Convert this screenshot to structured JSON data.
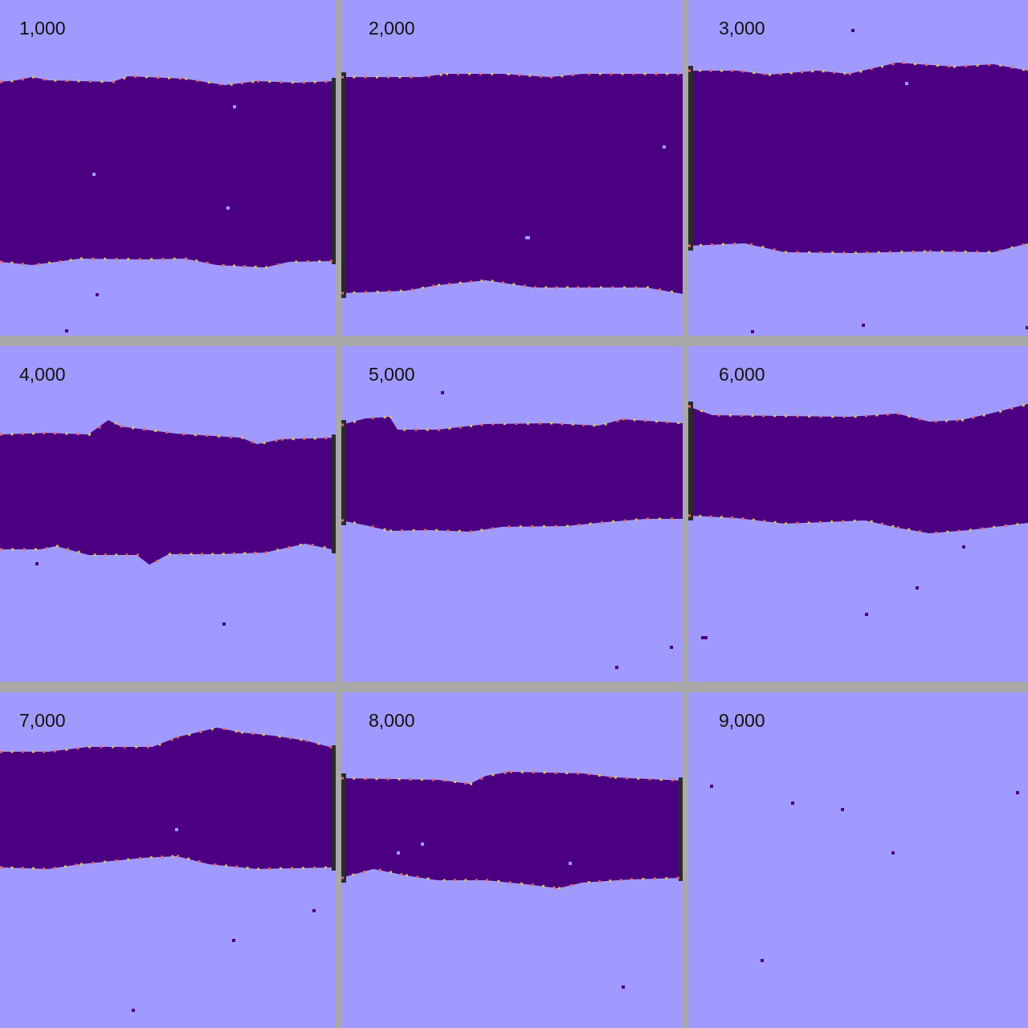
{
  "colors": {
    "background": "#a09aff",
    "band": "#4b0082",
    "separator": "#a9a9a9",
    "edge": "#2a2a2a",
    "speck_dark": "#4b0082",
    "speck_light": "#a09aff",
    "border_particles": [
      "#e66a6a",
      "#6fd0a0",
      "#e0c060",
      "#6a8ae6"
    ]
  },
  "panels": [
    {
      "label": "1,000"
    },
    {
      "label": "2,000"
    },
    {
      "label": "3,000"
    },
    {
      "label": "4,000"
    },
    {
      "label": "5,000"
    },
    {
      "label": "6,000"
    },
    {
      "label": "7,000"
    },
    {
      "label": "8,000"
    },
    {
      "label": "9,000"
    }
  ]
}
